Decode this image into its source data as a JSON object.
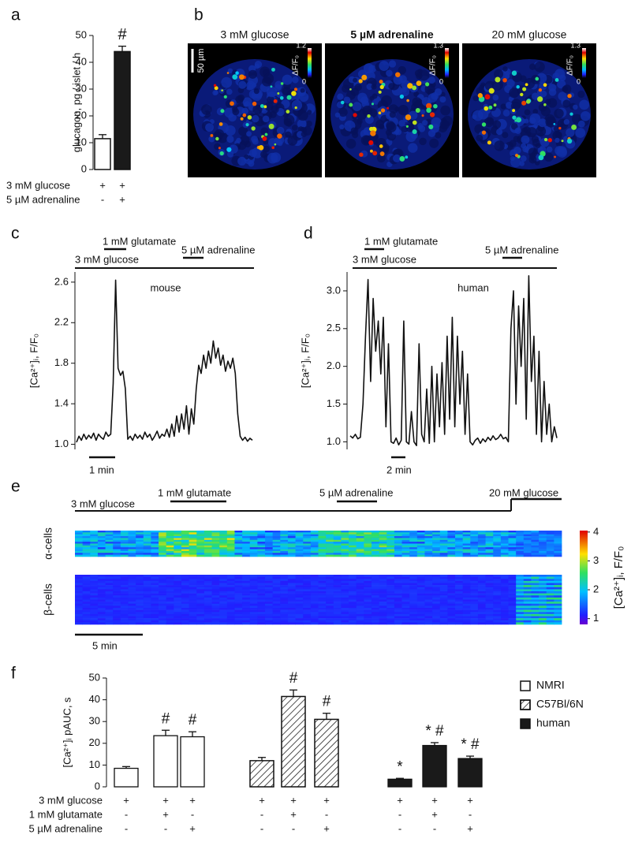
{
  "chart_data": [
    {
      "type": "bar",
      "panel": "a",
      "ylabel": "glucagon, pg / islet / h",
      "ylim": [
        0,
        50
      ],
      "yticks": [
        0,
        10,
        20,
        30,
        40,
        50
      ],
      "values": [
        11.5,
        44
      ],
      "errors": [
        1.5,
        2
      ],
      "colors": [
        "#ffffff",
        "#1a1a1a"
      ],
      "annotations": [
        null,
        "#"
      ],
      "conditions": [
        {
          "label": "3 mM glucose",
          "marks": [
            "+",
            "+"
          ]
        },
        {
          "label": "5 µM adrenaline",
          "marks": [
            "-",
            "+"
          ]
        }
      ]
    },
    {
      "type": "image",
      "panel": "b",
      "scale_label": "50 µm",
      "colorbar_title": "ΔF/F₀",
      "images": [
        {
          "title": "3 mM glucose",
          "zlim": [
            0,
            1.2
          ],
          "zticks": [
            0,
            1.2
          ]
        },
        {
          "title": "5 µM adrenaline",
          "zlim": [
            0,
            1.3
          ],
          "zticks": [
            0,
            1.3
          ]
        },
        {
          "title": "20 mM glucose",
          "zlim": [
            0,
            1.3
          ],
          "zticks": [
            0,
            1.3
          ]
        }
      ]
    },
    {
      "type": "line",
      "panel": "c",
      "ylabel": "[Ca²⁺]ᵢ, F/F₀",
      "ylim": [
        0.95,
        2.7
      ],
      "yticks": [
        {
          "value": 1,
          "label": "1.0"
        },
        1.4,
        1.8,
        2.2,
        2.6
      ],
      "color": "#111111",
      "subject": "mouse",
      "stimuli": [
        {
          "label": "3 mM glucose"
        },
        {
          "label": "1 mM glutamate"
        },
        {
          "label": "5 µM adrenaline"
        }
      ],
      "scale_label": "1 min",
      "values": [
        1.02,
        1.08,
        1.04,
        1.1,
        1.05,
        1.09,
        1.06,
        1.11,
        1.04,
        1.1,
        1.07,
        1.05,
        1.12,
        1.08,
        1.1,
        1.6,
        2.62,
        1.75,
        1.68,
        1.72,
        1.55,
        1.05,
        1.08,
        1.04,
        1.1,
        1.06,
        1.09,
        1.05,
        1.12,
        1.07,
        1.1,
        1.04,
        1.08,
        1.13,
        1.06,
        1.1,
        1.08,
        1.15,
        1.07,
        1.2,
        1.08,
        1.28,
        1.12,
        1.3,
        1.15,
        1.38,
        1.1,
        1.35,
        1.2,
        1.55,
        1.78,
        1.7,
        1.88,
        1.75,
        1.92,
        1.8,
        2.02,
        1.85,
        1.95,
        1.78,
        1.88,
        1.72,
        1.82,
        1.75,
        1.85,
        1.7,
        1.3,
        1.08,
        1.04,
        1.07,
        1.03,
        1.06,
        1.04
      ]
    },
    {
      "type": "line",
      "panel": "d",
      "ylabel": "[Ca²⁺]ᵢ, F/F₀",
      "ylim": [
        0.9,
        3.25
      ],
      "yticks": [
        {
          "value": 1,
          "label": "1.0"
        },
        1.5,
        {
          "value": 2,
          "label": "2.0"
        },
        2.5,
        {
          "value": 3,
          "label": "3.0"
        }
      ],
      "color": "#111111",
      "subject": "human",
      "stimuli": [
        {
          "label": "3 mM glucose"
        },
        {
          "label": "1 mM glutamate"
        },
        {
          "label": "5 µM adrenaline"
        }
      ],
      "scale_label": "2 min",
      "values": [
        1.08,
        1.05,
        1.1,
        1.04,
        1.06,
        1.5,
        2.4,
        3.15,
        1.8,
        2.9,
        2.2,
        2.6,
        1.9,
        2.65,
        1.2,
        2.3,
        1.0,
        0.98,
        1.05,
        0.96,
        1.02,
        2.6,
        1.0,
        0.97,
        1.4,
        1.0,
        0.95,
        2.3,
        1.1,
        1.0,
        1.7,
        0.98,
        2.0,
        1.0,
        1.9,
        1.2,
        2.05,
        1.1,
        2.4,
        1.3,
        2.65,
        1.2,
        2.4,
        1.5,
        2.2,
        1.1,
        1.9,
        1.0,
        0.96,
        1.02,
        1.05,
        0.98,
        1.04,
        1.0,
        1.06,
        1.02,
        1.08,
        1.03,
        1.05,
        1.1,
        1.04,
        1.06,
        1.0,
        2.5,
        3.0,
        1.5,
        2.8,
        2.0,
        2.9,
        1.3,
        3.2,
        1.8,
        2.4,
        1.1,
        2.2,
        1.0,
        1.8,
        1.1,
        1.5,
        1.0,
        1.2,
        1.05
      ]
    },
    {
      "type": "heatmap",
      "panel": "e",
      "rows": [
        "α-cells",
        "β-cells"
      ],
      "zlabel": "[Ca²⁺]ᵢ, F/F₀",
      "zlim": [
        0.8,
        4.05
      ],
      "zticks": [
        1,
        2,
        3,
        4
      ],
      "stimuli": [
        {
          "label": "3 mM glucose"
        },
        {
          "label": "1 mM glutamate"
        },
        {
          "label": "5 µM adrenaline"
        },
        {
          "label": "20 mM glucose"
        }
      ],
      "scale_label": "5 min"
    },
    {
      "type": "grouped_bar",
      "panel": "f",
      "ylabel": "[Ca²⁺]ᵢ pAUC, s",
      "ylim": [
        0,
        50
      ],
      "yticks": [
        0,
        10,
        20,
        30,
        40,
        50
      ],
      "series": [
        {
          "name": "NMRI",
          "color": "#ffffff",
          "pattern": "solid",
          "values": [
            8.5,
            23.5,
            23
          ],
          "errors": [
            0.8,
            2.5,
            2.3
          ],
          "annotations": [
            null,
            "#",
            "#"
          ]
        },
        {
          "name": "C57Bl/6N",
          "color": "#ffffff",
          "pattern": "hatch",
          "values": [
            12,
            41.5,
            31
          ],
          "errors": [
            1.5,
            3,
            2.8
          ],
          "annotations": [
            null,
            "#",
            "#"
          ]
        },
        {
          "name": "human",
          "color": "#1a1a1a",
          "pattern": "solid",
          "values": [
            3.5,
            19,
            13
          ],
          "errors": [
            0.4,
            1.3,
            1.1
          ],
          "annotations": [
            "*",
            "* #",
            "* #"
          ]
        }
      ],
      "conditions": [
        {
          "label": "3 mM glucose",
          "marks": [
            "+",
            "+",
            "+"
          ]
        },
        {
          "label": "1 mM glutamate",
          "marks": [
            "-",
            "+",
            "-"
          ]
        },
        {
          "label": "5 µM adrenaline",
          "marks": [
            "-",
            "-",
            "+"
          ]
        }
      ]
    }
  ]
}
